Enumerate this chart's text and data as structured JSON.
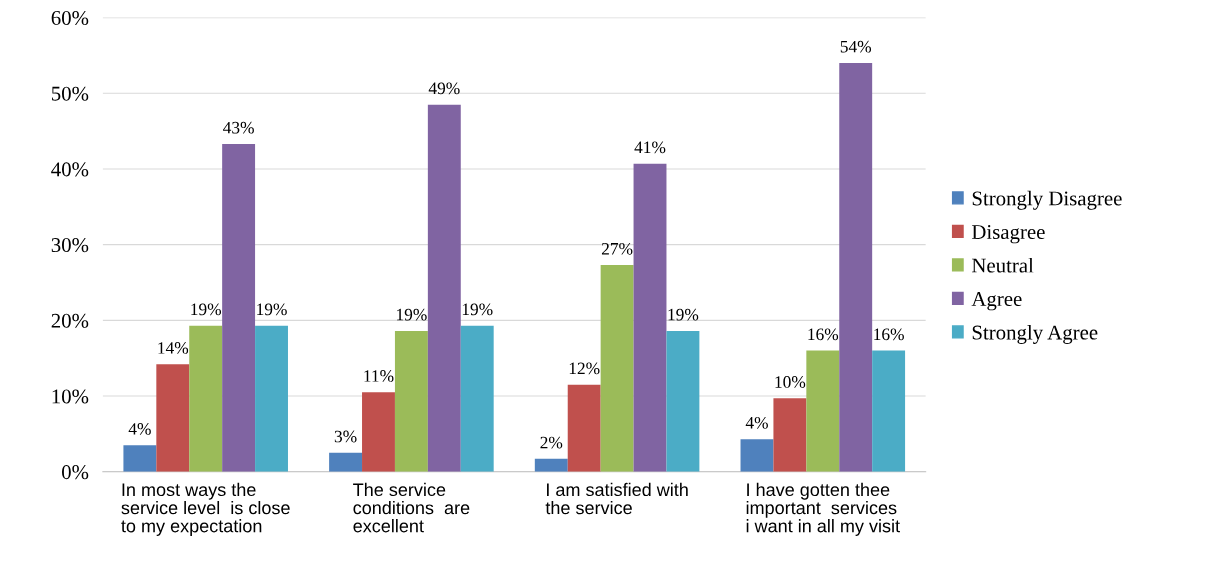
{
  "chart_data": {
    "type": "bar",
    "categories": [
      "In most ways the\nservice level  is close\nto my expectation",
      "The service\nconditions  are\nexcellent",
      "I am satisfied with\nthe service",
      "I have gotten thee\nimportant  services\ni want in all my visit"
    ],
    "series": [
      {
        "name": "Strongly Disagree",
        "color": "#4f81bd",
        "values": [
          3.5,
          2.5,
          1.7,
          4.3
        ],
        "value_labels": [
          "4%",
          "3%",
          "2%",
          "4%"
        ]
      },
      {
        "name": "Disagree",
        "color": "#c0504d",
        "values": [
          14.2,
          10.5,
          11.5,
          9.7
        ],
        "value_labels": [
          "14%",
          "11%",
          "12%",
          "10%"
        ]
      },
      {
        "name": "Neutral",
        "color": "#9bbb59",
        "values": [
          19.3,
          18.6,
          27.3,
          16.0
        ],
        "value_labels": [
          "19%",
          "19%",
          "27%",
          "16%"
        ]
      },
      {
        "name": "Agree",
        "color": "#8064a2",
        "values": [
          43.3,
          48.5,
          40.7,
          54.0
        ],
        "value_labels": [
          "43%",
          "49%",
          "41%",
          "54%"
        ]
      },
      {
        "name": "Strongly Agree",
        "color": "#4bacc6",
        "values": [
          19.3,
          19.3,
          18.6,
          16.0
        ],
        "value_labels": [
          "19%",
          "19%",
          "19%",
          "16%"
        ]
      }
    ],
    "ylim": [
      0,
      60
    ],
    "yticks": [
      {
        "value": 0,
        "label": "0%"
      },
      {
        "value": 10,
        "label": "10%"
      },
      {
        "value": 20,
        "label": "20%"
      },
      {
        "value": 30,
        "label": "30%"
      },
      {
        "value": 40,
        "label": "40%"
      },
      {
        "value": 50,
        "label": "50%"
      },
      {
        "value": 60,
        "label": "60%"
      }
    ],
    "grid": "y",
    "legend": "right"
  }
}
